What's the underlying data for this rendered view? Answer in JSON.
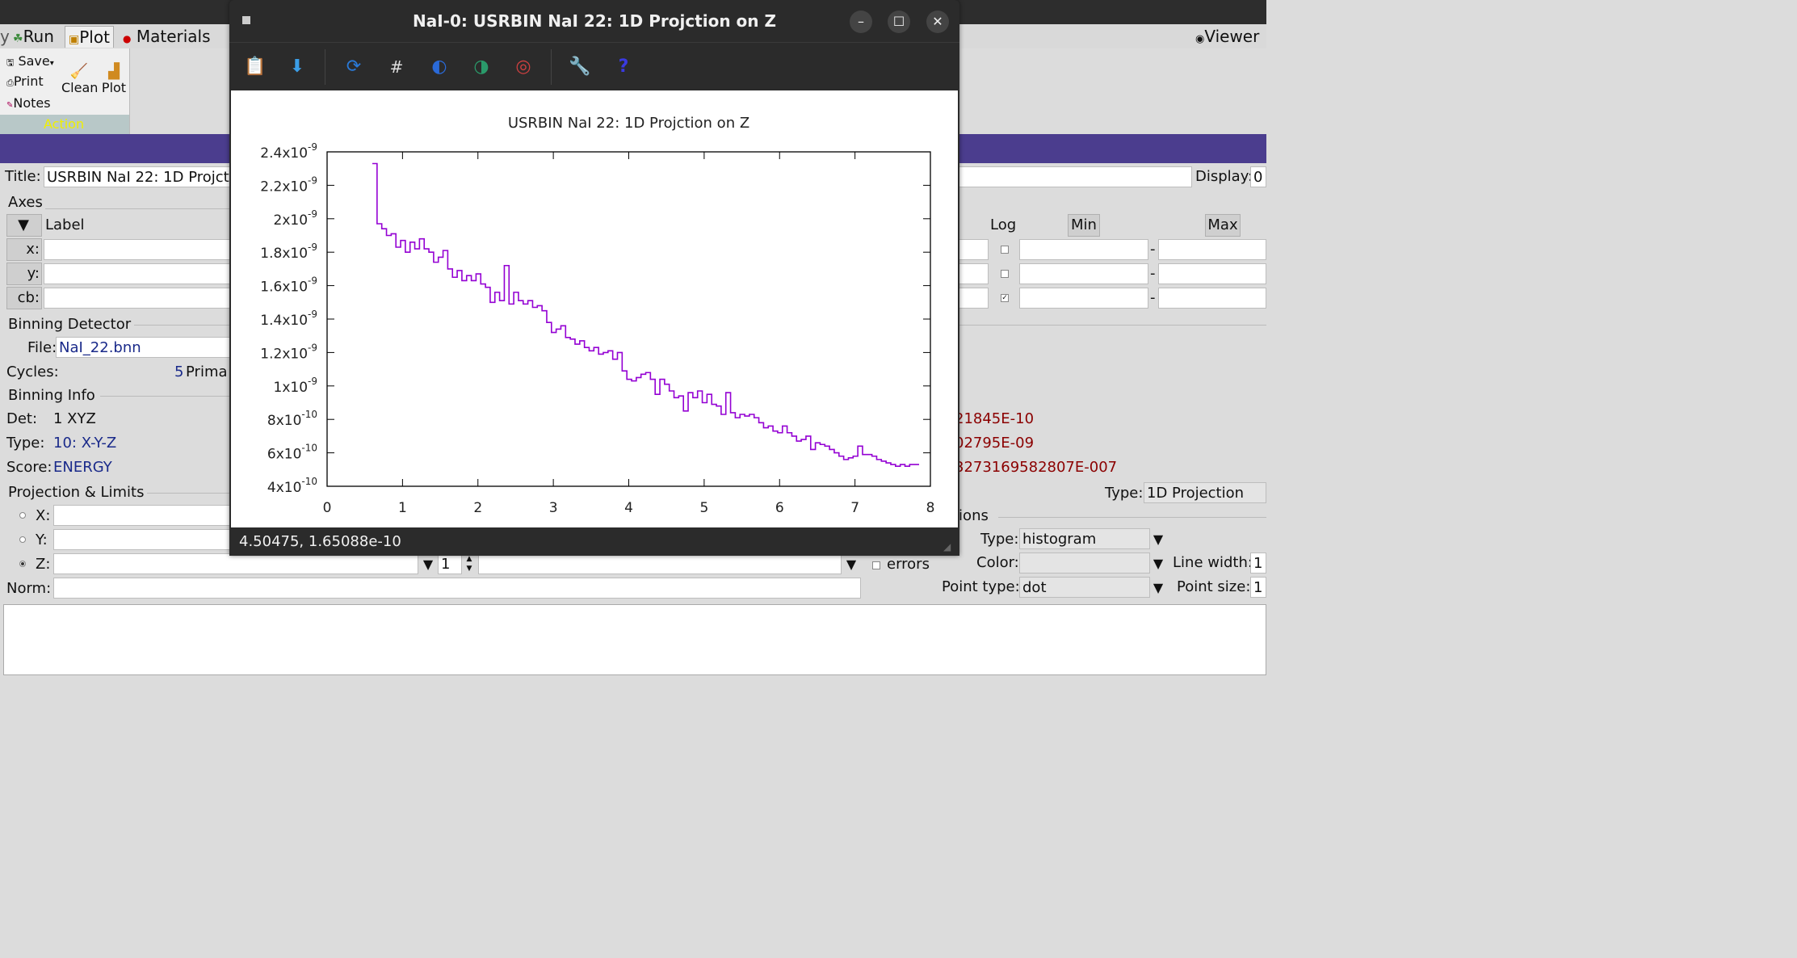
{
  "main_window": {
    "ribbon_tabs": [
      "Run",
      "Plot",
      "Materials",
      "Viewer"
    ],
    "ribbon_buttons": {
      "save": "Save",
      "print": "Print",
      "notes": "Notes",
      "clean": "Clean",
      "plot": "Plot"
    },
    "ribbon_group": "Action",
    "title_label": "Title:",
    "title_value": "USRBIN NaI 22: 1D Projcti",
    "display_label": "Display:",
    "display_value": "0",
    "axes": {
      "section": "Axes",
      "label_header": "Label",
      "log_header": "Log",
      "min_header": "Min",
      "max_header": "Max",
      "rows": [
        {
          "name": "x:",
          "log": false
        },
        {
          "name": "y:",
          "log": false
        },
        {
          "name": "cb:",
          "log": true
        }
      ]
    },
    "binning_detector": {
      "section": "Binning Detector",
      "file_label": "File:",
      "file_value": "NaI_22.bnn",
      "cycles_label": "Cycles:",
      "cycles_value": "5",
      "primaries_label": "Prima"
    },
    "binning_info": {
      "section": "Binning Info",
      "det_label": "Det:",
      "det_value": "1 XYZ",
      "type_label": "Type:",
      "type_value": "10: X-Y-Z",
      "score_label": "Score:",
      "score_value": "ENERGY",
      "right_values": [
        "21845E-10",
        "02795E-09",
        "3273169582807E-007"
      ]
    },
    "projection": {
      "section": "Projection & Limits",
      "type_label": "Type:",
      "type_value": "1D Projection",
      "x_label": "X:",
      "y_label": "Y:",
      "z_label": "Z:",
      "z_spin": "1",
      "errors_label": "errors",
      "norm_label": "Norm:"
    },
    "options": {
      "section": "tions",
      "type_label": "Type:",
      "type_value": "histogram",
      "color_label": "Color:",
      "color_value": "",
      "linewidth_label": "Line width:",
      "linewidth_value": "1",
      "pointtype_label": "Point type:",
      "pointtype_value": "dot",
      "pointsize_label": "Point size:",
      "pointsize_value": "1"
    }
  },
  "gnuplot_window": {
    "title": "NaI-0: USRBIN NaI 22: 1D Projction on Z",
    "status": "4.50475,  1.65088e-10",
    "toolbar_icons": [
      "copy-icon",
      "export-icon",
      "replot-icon",
      "grid-icon",
      "unzoom-back-icon",
      "unzoom-forward-icon",
      "unzoom-all-icon",
      "config-icon",
      "help-icon"
    ]
  },
  "chart_data": {
    "type": "line",
    "style": "histogram-steps",
    "title": "USRBIN NaI 22: 1D Projction on Z",
    "xlabel": "",
    "ylabel": "",
    "xlim": [
      0,
      8
    ],
    "ylim": [
      4e-10,
      2.4e-09
    ],
    "x_ticks": [
      "0",
      "1",
      "2",
      "3",
      "4",
      "5",
      "6",
      "7",
      "8"
    ],
    "y_ticks": [
      {
        "base": "4x10",
        "exp": "-10"
      },
      {
        "base": "6x10",
        "exp": "-10"
      },
      {
        "base": "8x10",
        "exp": "-10"
      },
      {
        "base": "1x10",
        "exp": "-9"
      },
      {
        "base": "1.2x10",
        "exp": "-9"
      },
      {
        "base": "1.4x10",
        "exp": "-9"
      },
      {
        "base": "1.6x10",
        "exp": "-9"
      },
      {
        "base": "1.8x10",
        "exp": "-9"
      },
      {
        "base": "2x10",
        "exp": "-9"
      },
      {
        "base": "2.2x10",
        "exp": "-9"
      },
      {
        "base": "2.4x10",
        "exp": "-9"
      }
    ],
    "y_tick_values": [
      4e-10,
      6e-10,
      8e-10,
      1e-09,
      1.2e-09,
      1.4e-09,
      1.6e-09,
      1.8e-09,
      2e-09,
      2.2e-09,
      2.4e-09
    ],
    "series_color": "#9400d3",
    "bin_width": 0.0625,
    "x_start": 0.6,
    "values": [
      2.33e-09,
      1.97e-09,
      1.94e-09,
      1.9e-09,
      1.91e-09,
      1.83e-09,
      1.87e-09,
      1.8e-09,
      1.86e-09,
      1.82e-09,
      1.88e-09,
      1.82e-09,
      1.8e-09,
      1.74e-09,
      1.77e-09,
      1.81e-09,
      1.7e-09,
      1.65e-09,
      1.69e-09,
      1.63e-09,
      1.66e-09,
      1.63e-09,
      1.67e-09,
      1.61e-09,
      1.59e-09,
      1.5e-09,
      1.56e-09,
      1.51e-09,
      1.72e-09,
      1.49e-09,
      1.56e-09,
      1.51e-09,
      1.49e-09,
      1.51e-09,
      1.47e-09,
      1.48e-09,
      1.45e-09,
      1.38e-09,
      1.32e-09,
      1.34e-09,
      1.36e-09,
      1.29e-09,
      1.28e-09,
      1.25e-09,
      1.27e-09,
      1.23e-09,
      1.21e-09,
      1.23e-09,
      1.19e-09,
      1.2e-09,
      1.21e-09,
      1.16e-09,
      1.2e-09,
      1.09e-09,
      1.04e-09,
      1.03e-09,
      1.05e-09,
      1.07e-09,
      1.08e-09,
      1.04e-09,
      9.5e-10,
      1.04e-09,
      1.01e-09,
      9.7e-10,
      9.3e-10,
      9.4e-10,
      8.5e-10,
      9.6e-10,
      9.3e-10,
      9.7e-10,
      9e-10,
      9.5e-10,
      8.9e-10,
      8.8e-10,
      8.3e-10,
      9.6e-10,
      8.4e-10,
      8.1e-10,
      8.3e-10,
      8.2e-10,
      8.3e-10,
      8.1e-10,
      7.8e-10,
      7.5e-10,
      7.6e-10,
      7.3e-10,
      7.2e-10,
      7.6e-10,
      7.2e-10,
      7e-10,
      6.7e-10,
      6.8e-10,
      7e-10,
      6.2e-10,
      6.6e-10,
      6.5e-10,
      6.4e-10,
      6.2e-10,
      6e-10,
      5.8e-10,
      5.6e-10,
      5.7e-10,
      5.8e-10,
      6.4e-10,
      5.9e-10,
      5.9e-10,
      5.8e-10,
      5.6e-10,
      5.5e-10,
      5.4e-10,
      5.3e-10,
      5.2e-10,
      5.3e-10,
      5.2e-10,
      5.3e-10,
      5.3e-10
    ]
  }
}
